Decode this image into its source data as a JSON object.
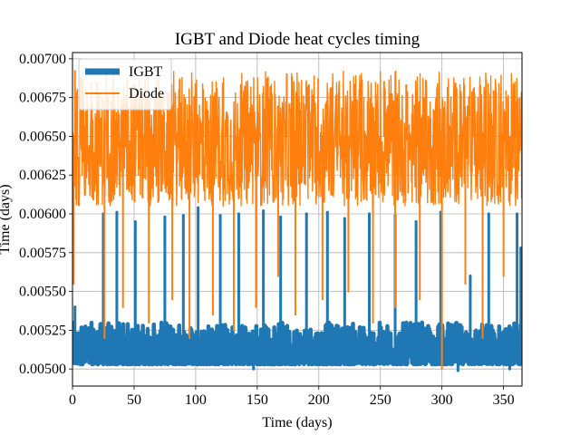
{
  "chart_data": {
    "type": "line",
    "title": "IGBT and Diode heat cycles timing",
    "xlabel": "Time (days)",
    "ylabel": "Time (days)",
    "xlim": [
      0,
      365
    ],
    "ylim": [
      0.00489,
      0.00704
    ],
    "xticks": [
      0,
      50,
      100,
      150,
      200,
      250,
      300,
      350
    ],
    "xtick_labels": [
      "0",
      "50",
      "100",
      "150",
      "200",
      "250",
      "300",
      "350"
    ],
    "yticks": [
      0.005,
      0.00525,
      0.0055,
      0.00575,
      0.006,
      0.00625,
      0.0065,
      0.00675,
      0.007
    ],
    "ytick_labels": [
      "0.00500",
      "0.00525",
      "0.00550",
      "0.00575",
      "0.00600",
      "0.00625",
      "0.00650",
      "0.00675",
      "0.00700"
    ],
    "grid": true,
    "legend_position": "upper-left",
    "series": [
      {
        "name": "IGBT",
        "color": "#1f77b4",
        "style": "thick-line",
        "band_range": [
          0.00503,
          0.0053
        ],
        "overall_range": [
          0.00497,
          0.00607
        ],
        "x": [
          0,
          2,
          6,
          12,
          25,
          30,
          36,
          44,
          51,
          66,
          75,
          80,
          90,
          94,
          102,
          111,
          120,
          128,
          135,
          147,
          155,
          161,
          169,
          178,
          190,
          198,
          207,
          213,
          221,
          232,
          241,
          249,
          262,
          268,
          279,
          285,
          299,
          308,
          313,
          323,
          330,
          338,
          345,
          355,
          361,
          364
        ],
        "values": [
          0.00506,
          0.0054,
          0.00515,
          0.00512,
          0.006,
          0.00508,
          0.00601,
          0.0051,
          0.00595,
          0.0051,
          0.00598,
          0.00507,
          0.00599,
          0.00509,
          0.00604,
          0.00511,
          0.00599,
          0.00508,
          0.006,
          0.005,
          0.00602,
          0.0051,
          0.00598,
          0.00512,
          0.006,
          0.00505,
          0.00601,
          0.0051,
          0.00597,
          0.00512,
          0.006,
          0.00509,
          0.00599,
          0.0051,
          0.00595,
          0.00512,
          0.00601,
          0.0051,
          0.00499,
          0.0056,
          0.00508,
          0.006,
          0.0051,
          0.005,
          0.006,
          0.00578
        ]
      },
      {
        "name": "Diode",
        "color": "#ff7f0e",
        "style": "line",
        "band_range": [
          0.00605,
          0.0068
        ],
        "overall_range": [
          0.005,
          0.00692
        ],
        "x": [
          1,
          2,
          3,
          20,
          26,
          33,
          41,
          51,
          62,
          70,
          81,
          87,
          95,
          106,
          114,
          122,
          131,
          140,
          149,
          158,
          167,
          174,
          181,
          192,
          203,
          210,
          224,
          235,
          244,
          253,
          262,
          271,
          282,
          296,
          300,
          311,
          319,
          326,
          333,
          342,
          350,
          360
        ],
        "values": [
          0.00555,
          0.00692,
          0.0061,
          0.00684,
          0.0052,
          0.00685,
          0.0054,
          0.00683,
          0.0053,
          0.00688,
          0.00545,
          0.00686,
          0.0052,
          0.0068,
          0.00535,
          0.00684,
          0.00525,
          0.00682,
          0.0054,
          0.00687,
          0.0056,
          0.0069,
          0.00535,
          0.00683,
          0.00545,
          0.00681,
          0.0055,
          0.00686,
          0.0053,
          0.00685,
          0.0054,
          0.00683,
          0.00545,
          0.00681,
          0.005,
          0.00684,
          0.00555,
          0.00681,
          0.0052,
          0.00679,
          0.0056,
          0.00672
        ]
      }
    ]
  }
}
